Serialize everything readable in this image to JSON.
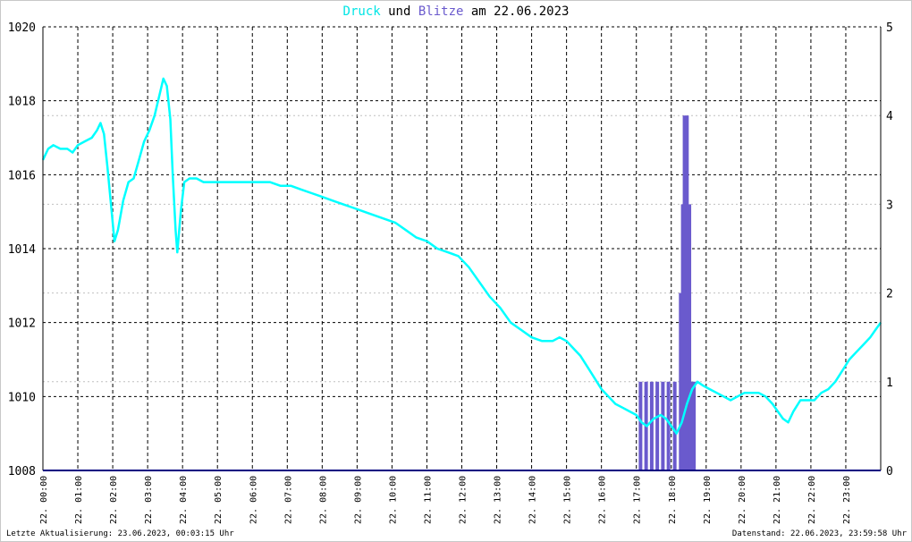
{
  "title": {
    "part1": "Druck",
    "part2": " und ",
    "part3": "Blitze",
    "part4": " am 22.06.2023"
  },
  "footer": {
    "left": "Letzte Aktualisierung: 23.06.2023, 00:03:15 Uhr",
    "right": "Datenstand: 22.06.2023, 23:59:58 Uhr"
  },
  "colors": {
    "pressure": "#00ffff",
    "lightning": "#6a5acd",
    "grid": "#000000",
    "grid_minor": "#c0c0c0",
    "axis": "#000080"
  },
  "chart_data": {
    "type": "line",
    "title": "Druck und Blitze am 22.06.2023",
    "x_range_hours": [
      0,
      24
    ],
    "x_tick_labels": [
      "22. 00:00",
      "22. 01:00",
      "22. 02:00",
      "22. 03:00",
      "22. 04:00",
      "22. 05:00",
      "22. 06:00",
      "22. 07:00",
      "22. 08:00",
      "22. 09:00",
      "22. 10:00",
      "22. 11:00",
      "22. 12:00",
      "22. 13:00",
      "22. 14:00",
      "22. 15:00",
      "22. 16:00",
      "22. 17:00",
      "22. 18:00",
      "22. 19:00",
      "22. 20:00",
      "22. 21:00",
      "22. 22:00",
      "22. 23:00"
    ],
    "y_left": {
      "label": "",
      "range": [
        1008,
        1020
      ],
      "ticks": [
        1008,
        1010,
        1012,
        1014,
        1016,
        1018,
        1020
      ]
    },
    "y_right": {
      "label": "",
      "range": [
        0,
        5
      ],
      "ticks": [
        0,
        1,
        2,
        3,
        4,
        5
      ]
    },
    "series": [
      {
        "name": "Druck",
        "axis": "left",
        "points": [
          [
            0.0,
            1016.4
          ],
          [
            0.15,
            1016.7
          ],
          [
            0.3,
            1016.8
          ],
          [
            0.5,
            1016.7
          ],
          [
            0.7,
            1016.7
          ],
          [
            0.85,
            1016.6
          ],
          [
            1.0,
            1016.8
          ],
          [
            1.2,
            1016.9
          ],
          [
            1.4,
            1017.0
          ],
          [
            1.55,
            1017.2
          ],
          [
            1.65,
            1017.4
          ],
          [
            1.75,
            1017.1
          ],
          [
            1.85,
            1016.2
          ],
          [
            1.95,
            1015.2
          ],
          [
            2.05,
            1014.2
          ],
          [
            2.15,
            1014.5
          ],
          [
            2.3,
            1015.3
          ],
          [
            2.45,
            1015.8
          ],
          [
            2.6,
            1015.9
          ],
          [
            2.75,
            1016.4
          ],
          [
            2.9,
            1016.9
          ],
          [
            3.05,
            1017.2
          ],
          [
            3.2,
            1017.6
          ],
          [
            3.35,
            1018.2
          ],
          [
            3.45,
            1018.6
          ],
          [
            3.55,
            1018.4
          ],
          [
            3.65,
            1017.5
          ],
          [
            3.72,
            1016.0
          ],
          [
            3.8,
            1014.5
          ],
          [
            3.85,
            1013.9
          ],
          [
            3.95,
            1015.0
          ],
          [
            4.05,
            1015.8
          ],
          [
            4.2,
            1015.9
          ],
          [
            4.4,
            1015.9
          ],
          [
            4.6,
            1015.8
          ],
          [
            4.8,
            1015.8
          ],
          [
            5.0,
            1015.8
          ],
          [
            5.3,
            1015.8
          ],
          [
            5.6,
            1015.8
          ],
          [
            5.9,
            1015.8
          ],
          [
            6.2,
            1015.8
          ],
          [
            6.5,
            1015.8
          ],
          [
            6.8,
            1015.7
          ],
          [
            7.1,
            1015.7
          ],
          [
            7.4,
            1015.6
          ],
          [
            7.7,
            1015.5
          ],
          [
            8.0,
            1015.4
          ],
          [
            8.3,
            1015.3
          ],
          [
            8.6,
            1015.2
          ],
          [
            8.9,
            1015.1
          ],
          [
            9.2,
            1015.0
          ],
          [
            9.5,
            1014.9
          ],
          [
            9.8,
            1014.8
          ],
          [
            10.1,
            1014.7
          ],
          [
            10.4,
            1014.5
          ],
          [
            10.7,
            1014.3
          ],
          [
            11.0,
            1014.2
          ],
          [
            11.3,
            1014.0
          ],
          [
            11.6,
            1013.9
          ],
          [
            11.9,
            1013.8
          ],
          [
            12.2,
            1013.5
          ],
          [
            12.5,
            1013.1
          ],
          [
            12.8,
            1012.7
          ],
          [
            13.1,
            1012.4
          ],
          [
            13.4,
            1012.0
          ],
          [
            13.7,
            1011.8
          ],
          [
            14.0,
            1011.6
          ],
          [
            14.3,
            1011.5
          ],
          [
            14.6,
            1011.5
          ],
          [
            14.8,
            1011.6
          ],
          [
            15.0,
            1011.5
          ],
          [
            15.2,
            1011.3
          ],
          [
            15.4,
            1011.1
          ],
          [
            15.6,
            1010.8
          ],
          [
            15.8,
            1010.5
          ],
          [
            16.0,
            1010.2
          ],
          [
            16.2,
            1010.0
          ],
          [
            16.4,
            1009.8
          ],
          [
            16.6,
            1009.7
          ],
          [
            16.8,
            1009.6
          ],
          [
            17.0,
            1009.5
          ],
          [
            17.15,
            1009.3
          ],
          [
            17.3,
            1009.2
          ],
          [
            17.5,
            1009.4
          ],
          [
            17.7,
            1009.5
          ],
          [
            17.85,
            1009.4
          ],
          [
            18.0,
            1009.2
          ],
          [
            18.15,
            1009.0
          ],
          [
            18.3,
            1009.3
          ],
          [
            18.45,
            1009.8
          ],
          [
            18.6,
            1010.2
          ],
          [
            18.75,
            1010.4
          ],
          [
            18.9,
            1010.3
          ],
          [
            19.1,
            1010.2
          ],
          [
            19.3,
            1010.1
          ],
          [
            19.5,
            1010.0
          ],
          [
            19.7,
            1009.9
          ],
          [
            19.9,
            1010.0
          ],
          [
            20.1,
            1010.1
          ],
          [
            20.3,
            1010.1
          ],
          [
            20.5,
            1010.1
          ],
          [
            20.7,
            1010.0
          ],
          [
            20.9,
            1009.8
          ],
          [
            21.05,
            1009.6
          ],
          [
            21.2,
            1009.4
          ],
          [
            21.35,
            1009.3
          ],
          [
            21.5,
            1009.6
          ],
          [
            21.7,
            1009.9
          ],
          [
            21.9,
            1009.9
          ],
          [
            22.1,
            1009.9
          ],
          [
            22.3,
            1010.1
          ],
          [
            22.5,
            1010.2
          ],
          [
            22.7,
            1010.4
          ],
          [
            22.9,
            1010.7
          ],
          [
            23.1,
            1011.0
          ],
          [
            23.3,
            1011.2
          ],
          [
            23.5,
            1011.4
          ],
          [
            23.7,
            1011.6
          ],
          [
            23.85,
            1011.8
          ],
          [
            24.0,
            1012.0
          ]
        ]
      },
      {
        "name": "Blitze",
        "axis": "right",
        "bars": [
          [
            17.12,
            1
          ],
          [
            17.28,
            1
          ],
          [
            17.44,
            1
          ],
          [
            17.6,
            1
          ],
          [
            17.76,
            1
          ],
          [
            17.92,
            1
          ],
          [
            18.1,
            1
          ],
          [
            18.27,
            2
          ],
          [
            18.33,
            3
          ],
          [
            18.38,
            4
          ],
          [
            18.45,
            4
          ],
          [
            18.52,
            3
          ],
          [
            18.6,
            1
          ],
          [
            18.65,
            1
          ]
        ]
      }
    ]
  }
}
